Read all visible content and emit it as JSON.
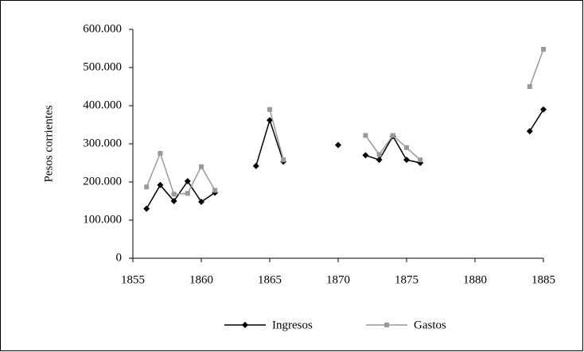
{
  "chart_data": {
    "type": "line",
    "ylabel": "Pesos corrientes",
    "x": [
      1856,
      1857,
      1858,
      1859,
      1860,
      1861,
      1862,
      1863,
      1864,
      1865,
      1866,
      1867,
      1868,
      1869,
      1870,
      1871,
      1872,
      1873,
      1874,
      1875,
      1876,
      1877,
      1878,
      1879,
      1880,
      1881,
      1882,
      1883,
      1884,
      1885
    ],
    "series": [
      {
        "name": "Ingresos",
        "color": "#000000",
        "marker": "diamond",
        "values": [
          130000,
          192000,
          150000,
          202000,
          148000,
          172000,
          null,
          null,
          242000,
          362000,
          253000,
          null,
          null,
          null,
          297000,
          null,
          270000,
          258000,
          320000,
          258000,
          250000,
          null,
          null,
          null,
          null,
          null,
          null,
          null,
          333000,
          390000
        ]
      },
      {
        "name": "Gastos",
        "color": "#999999",
        "marker": "square",
        "values": [
          187000,
          275000,
          168000,
          170000,
          240000,
          178000,
          null,
          null,
          null,
          390000,
          258000,
          null,
          null,
          null,
          null,
          null,
          322000,
          272000,
          322000,
          290000,
          258000,
          null,
          null,
          null,
          null,
          null,
          null,
          null,
          450000,
          548000
        ]
      }
    ],
    "xlim": [
      1855,
      1885
    ],
    "xticks": [
      1855,
      1860,
      1865,
      1870,
      1875,
      1880,
      1885
    ],
    "ylim": [
      0,
      600000
    ],
    "yticks": [
      0,
      {
        "value": 100000,
        "label": "100.000"
      },
      {
        "value": 200000,
        "label": "200.000"
      },
      {
        "value": 300000,
        "label": "300.000"
      },
      {
        "value": 400000,
        "label": "400.000"
      },
      {
        "value": 500000,
        "label": "500.000"
      },
      {
        "value": 600000,
        "label": "600.000"
      }
    ],
    "grid": false,
    "legend": "bottom"
  }
}
